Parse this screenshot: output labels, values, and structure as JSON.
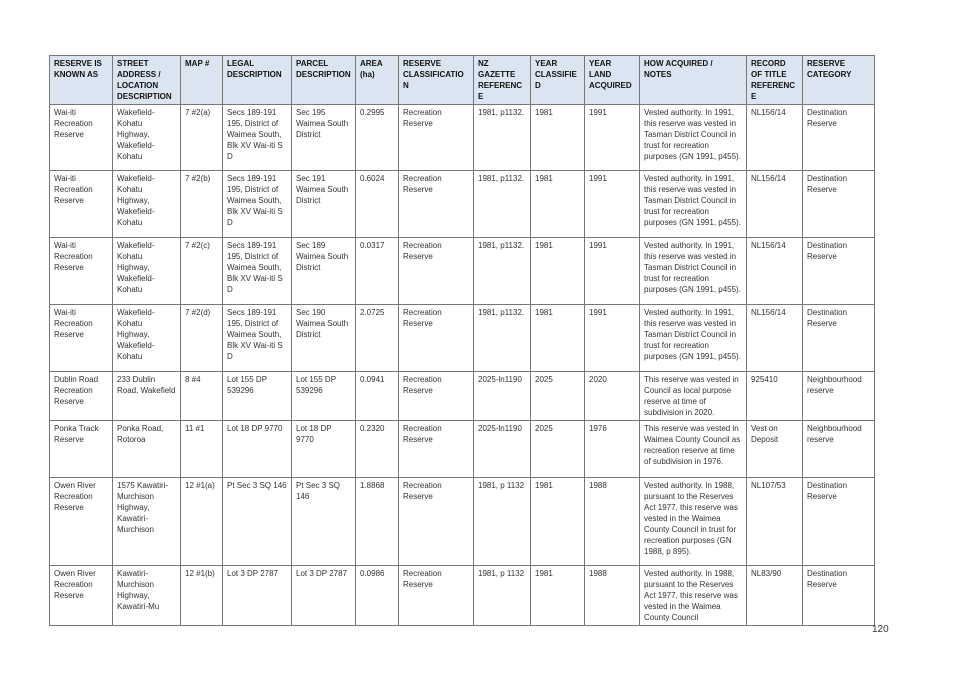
{
  "table": {
    "headers": [
      "RESERVE IS KNOWN AS",
      "STREET ADDRESS / LOCATION DESCRIPTION",
      "MAP #",
      "LEGAL DESCRIPTION",
      "PARCEL DESCRIPTION",
      "AREA (ha)",
      "RESERVE CLASSIFICATION",
      "NZ GAZETTE REFERENCE",
      "YEAR CLASSIFIED",
      "YEAR LAND ACQUIRED",
      "HOW ACQUIRED / NOTES",
      "RECORD OF TITLE REFERENCE",
      "RESERVE CATEGORY"
    ],
    "rows": [
      [
        "Wai-iti Recreation Reserve",
        "Wakefield-Kohatu Highway, Wakefield-Kohatu",
        "7 #2(a)",
        "Secs 189-191 195, District of Waimea South, Blk XV Wai-iti S D",
        "Sec 195 Waimea South District",
        "0.2995",
        "Recreation Reserve",
        "1981, p1132.",
        "1981",
        "1991",
        "Vested authority. In 1991, this reserve was vested in Tasman District Council in trust for recreation purposes (GN 1991, p455).",
        "NL156/14",
        "Destination Reserve"
      ],
      [
        "Wai-iti Recreation Reserve",
        "Wakefield-Kohatu Highway, Wakefield-Kohatu",
        "7 #2(b)",
        "Secs 189-191 195, District of Waimea South, Blk XV Wai-iti S D",
        "Sec 191 Waimea South District",
        "0.6024",
        "Recreation Reserve",
        "1981, p1132.",
        "1981",
        "1991",
        "Vested authority. In 1991, this reserve was vested in Tasman District Council in trust for recreation purposes (GN 1991, p455).",
        "NL156/14",
        "Destination Reserve"
      ],
      [
        "Wai-iti Recreation Reserve",
        "Wakefield-Kohatu Highway, Wakefield-Kohatu",
        "7 #2(c)",
        "Secs 189-191 195, District of Waimea South, Blk XV Wai-iti S D",
        "Sec 189 Waimea South District",
        "0.0317",
        "Recreation Reserve",
        "1981, p1132.",
        "1981",
        "1991",
        "Vested authority. In 1991, this reserve was vested in Tasman District Council in trust for recreation purposes (GN 1991, p455).",
        "NL156/14",
        "Destination Reserve"
      ],
      [
        "Wai-iti Recreation Reserve",
        "Wakefield-Kohatu Highway, Wakefield-Kohatu",
        "7 #2(d)",
        "Secs 189-191 195, District of Waimea South, Blk XV Wai-iti S D",
        "Sec 190 Waimea South District",
        "2.0725",
        "Recreation Reserve",
        "1981, p1132.",
        "1981",
        "1991",
        "Vested authority. In 1991, this reserve was vested in Tasman District Council in trust for recreation purposes (GN 1991, p455).",
        "NL156/14",
        "Destination Reserve"
      ],
      [
        "Dublin Road Recreation Reserve",
        "233 Dublin Road, Wakefield",
        "8 #4",
        "Lot 155 DP 539296",
        "Lot 155 DP 539296",
        "0.0941",
        "Recreation Reserve",
        "2025-ln1190",
        "2025",
        "2020",
        "This reserve was vested in Council as local purpose reserve at time of subdivision in 2020.",
        "925410",
        "Neighbourhood reserve"
      ],
      [
        "Ponka Track Reserve",
        "Ponka Road, Rotoroa",
        "11 #1",
        "Lot 18 DP 9770",
        "Lot 18 DP 9770",
        "0.2320",
        "Recreation Reserve",
        "2025-ln1190",
        "2025",
        "1976",
        "This reserve was vested in Waimea County Council as recreation reserve at time of subdivision in 1976.",
        "Vest on Deposit",
        "Neighbourhood reserve"
      ],
      [
        "Owen River Recreation Reserve",
        "1575 Kawatiri-Murchison Highway, Kawatiri-Murchison",
        "12 #1(a)",
        "Pt Sec 3 SQ 146",
        "Pt Sec 3 SQ 146",
        "1.8868",
        "Recreation Reserve",
        "1981, p 1132",
        "1981",
        "1988",
        "Vested authority. In 1988, pursuant to the Reserves Act 1977, this reserve was vested in the Waimea County Council in trust for recreation purposes (GN 1988, p 895).",
        "NL107/53",
        "Destination Reserve"
      ],
      [
        "Owen River Recreation Reserve",
        "Kawatiri-Murchison Highway, Kawatiri-Mu",
        "12 #1(b)",
        "Lot 3 DP 2787",
        "Lot 3 DP 2787",
        "0.0986",
        "Recreation Reserve",
        "1981, p 1132",
        "1981",
        "1988",
        "Vested authority. In 1988, pursuant to the Reserves Act 1977, this reserve was vested in the Waimea County Council",
        "NL83/90",
        "Destination Reserve"
      ]
    ]
  },
  "page_number": "120"
}
